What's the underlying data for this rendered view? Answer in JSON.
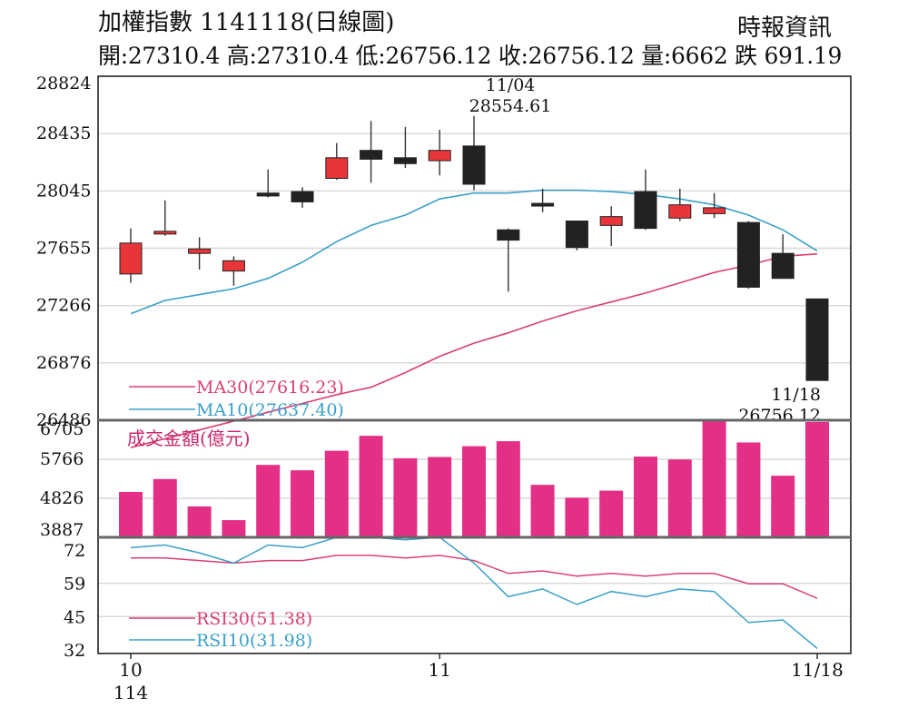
{
  "header": {
    "title": "加權指數 1141118(日線圖)",
    "source": "時報資訊",
    "ohlc": "開:27310.4 高:27310.4 低:26756.12 收:26756.12 量:6662 跌 691.19"
  },
  "colors": {
    "up": "#e8353a",
    "down": "#222222",
    "ma30": "#d9406e",
    "ma10": "#3aa0c8",
    "volume": "#e42f86",
    "rsi30": "#d9406e",
    "rsi10": "#3aa0c8",
    "text_volume": "#c8286e"
  },
  "chart_data": {
    "type": "candlestick",
    "price_axis": {
      "min": 26486,
      "max": 28824,
      "ticks": [
        "28824",
        "28435",
        "28045",
        "27655",
        "27266",
        "26876",
        "26486"
      ]
    },
    "x_labels": [
      {
        "index": 0,
        "label": "10",
        "sub": "114"
      },
      {
        "index": 9,
        "label": "11",
        "sub": ""
      },
      {
        "index": 20,
        "label": "11/18",
        "sub": ""
      }
    ],
    "candles": [
      {
        "o": 27480,
        "h": 27790,
        "l": 27420,
        "c": 27690
      },
      {
        "o": 27760,
        "h": 27980,
        "l": 27740,
        "c": 27770
      },
      {
        "o": 27620,
        "h": 27730,
        "l": 27510,
        "c": 27650
      },
      {
        "o": 27500,
        "h": 27600,
        "l": 27400,
        "c": 27570
      },
      {
        "o": 28030,
        "h": 28190,
        "l": 28000,
        "c": 28010
      },
      {
        "o": 28040,
        "h": 28070,
        "l": 27930,
        "c": 27970
      },
      {
        "o": 28130,
        "h": 28370,
        "l": 28120,
        "c": 28270
      },
      {
        "o": 28320,
        "h": 28520,
        "l": 28100,
        "c": 28260
      },
      {
        "o": 28270,
        "h": 28480,
        "l": 28200,
        "c": 28230
      },
      {
        "o": 28250,
        "h": 28460,
        "l": 28150,
        "c": 28320
      },
      {
        "o": 28350,
        "h": 28554.61,
        "l": 28050,
        "c": 28090
      },
      {
        "o": 27780,
        "h": 27790,
        "l": 27360,
        "c": 27710
      },
      {
        "o": 27960,
        "h": 28060,
        "l": 27900,
        "c": 27950
      },
      {
        "o": 27840,
        "h": 27840,
        "l": 27640,
        "c": 27660
      },
      {
        "o": 27810,
        "h": 27940,
        "l": 27670,
        "c": 27870
      },
      {
        "o": 28040,
        "h": 28190,
        "l": 27780,
        "c": 27790
      },
      {
        "o": 27860,
        "h": 28060,
        "l": 27840,
        "c": 27950
      },
      {
        "o": 27890,
        "h": 28030,
        "l": 27860,
        "c": 27930
      },
      {
        "o": 27830,
        "h": 27840,
        "l": 27380,
        "c": 27390
      },
      {
        "o": 27620,
        "h": 27750,
        "l": 27450,
        "c": 27450
      },
      {
        "o": 27310.4,
        "h": 27310.4,
        "l": 26756.12,
        "c": 26756.12
      }
    ],
    "ma30": [
      26300,
      26360,
      26420,
      26480,
      26540,
      26600,
      26660,
      26710,
      26810,
      26920,
      27010,
      27080,
      27160,
      27230,
      27290,
      27350,
      27420,
      27490,
      27540,
      27600,
      27616.23
    ],
    "ma10": [
      27210,
      27300,
      27340,
      27380,
      27450,
      27560,
      27700,
      27810,
      27880,
      27990,
      28030,
      28030,
      28050,
      28050,
      28040,
      28020,
      27990,
      27950,
      27880,
      27780,
      27637.4
    ],
    "ma_legend": [
      "MA30(27616.23)",
      "MA10(27637.40)"
    ],
    "high_label": {
      "index": 10,
      "date": "11/04",
      "value": "28554.61"
    },
    "low_label": {
      "index": 20,
      "date": "11/18",
      "value": "26756.12"
    },
    "volume": {
      "label": "成交金額(億元)",
      "axis": {
        "min": 3887,
        "max": 6705,
        "ticks": [
          "6705",
          "5766",
          "4826",
          "3887"
        ]
      },
      "values": [
        4980,
        5290,
        4630,
        4300,
        5630,
        5500,
        5970,
        6330,
        5790,
        5820,
        6080,
        6200,
        5150,
        4840,
        5010,
        5830,
        5760,
        6705,
        6170,
        5370,
        6662
      ]
    },
    "rsi": {
      "axis": {
        "min": 30,
        "max": 75,
        "ticks": [
          "72",
          "59",
          "45",
          "32"
        ]
      },
      "rsi30": [
        67,
        67,
        66,
        65,
        66,
        66,
        68,
        68,
        67,
        68,
        66,
        61,
        62,
        60,
        61,
        60,
        61,
        61,
        57,
        57,
        51.38
      ],
      "rsi10": [
        71,
        72,
        69,
        65,
        72,
        71,
        76,
        76,
        74,
        75,
        65,
        52,
        55,
        49,
        54,
        52,
        55,
        54,
        42,
        43,
        31.98
      ],
      "legend": [
        "RSI30(51.38)",
        "RSI10(31.98)"
      ]
    }
  }
}
